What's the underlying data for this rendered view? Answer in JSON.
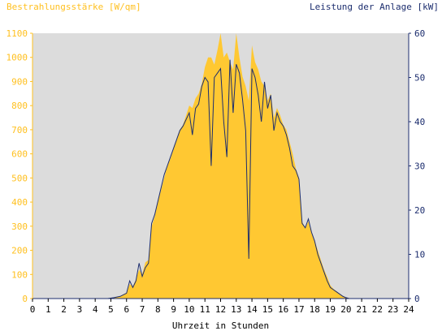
{
  "chart_data": {
    "type": "area",
    "y_left_label": "Bestrahlungsstärke [W/qm]",
    "y_right_label": "Leistung der Anlage [kW]",
    "xlabel": "Uhrzeit in Stunden",
    "xlim": [
      0,
      24
    ],
    "y_left_lim": [
      0,
      1100
    ],
    "y_right_lim": [
      0,
      60
    ],
    "x_ticks": [
      "0",
      "1",
      "2",
      "3",
      "4",
      "5",
      "6",
      "7",
      "8",
      "9",
      "10",
      "11",
      "12",
      "13",
      "14",
      "15",
      "16",
      "17",
      "18",
      "19",
      "20",
      "21",
      "22",
      "23",
      "24"
    ],
    "y_left_ticks": [
      "0",
      "100",
      "200",
      "300",
      "400",
      "500",
      "600",
      "700",
      "800",
      "900",
      "1000",
      "1100"
    ],
    "y_right_ticks": [
      "0",
      "10",
      "20",
      "30",
      "40",
      "50",
      "60"
    ],
    "grid": false,
    "colors": {
      "plot_background": "#dcdcdc",
      "irradiance_fill": "#ffc832",
      "power_line": "#1c2d6e",
      "left_axis": "#ffc020",
      "right_axis": "#1c2d6e"
    },
    "series": [
      {
        "axis": "left",
        "x": [
          0,
          4.8,
          5.2,
          5.6,
          6.0,
          6.2,
          6.4,
          6.6,
          6.8,
          7.0,
          7.2,
          7.4,
          7.6,
          7.8,
          8.0,
          8.2,
          8.4,
          8.6,
          8.8,
          9.0,
          9.2,
          9.4,
          9.6,
          9.8,
          10.0,
          10.2,
          10.4,
          10.6,
          10.8,
          11.0,
          11.2,
          11.4,
          11.6,
          11.8,
          12.0,
          12.2,
          12.4,
          12.6,
          12.8,
          13.0,
          13.2,
          13.4,
          13.6,
          13.8,
          14.0,
          14.2,
          14.4,
          14.6,
          14.8,
          15.0,
          15.2,
          15.4,
          15.6,
          15.8,
          16.0,
          16.2,
          16.4,
          16.6,
          16.8,
          17.0,
          17.2,
          17.4,
          17.6,
          17.8,
          18.0,
          18.2,
          18.4,
          18.6,
          18.8,
          19.0,
          19.2,
          19.4,
          19.6,
          19.8,
          20.0,
          20.2,
          20.5,
          21.0,
          24
        ],
        "values": [
          0,
          0,
          5,
          10,
          25,
          60,
          50,
          80,
          120,
          100,
          150,
          160,
          300,
          340,
          400,
          450,
          500,
          550,
          580,
          620,
          660,
          700,
          720,
          760,
          800,
          790,
          830,
          850,
          890,
          960,
          1000,
          1000,
          970,
          1030,
          1100,
          1000,
          1020,
          980,
          950,
          1100,
          1000,
          920,
          880,
          820,
          1050,
          980,
          950,
          900,
          880,
          820,
          850,
          750,
          790,
          760,
          720,
          700,
          650,
          600,
          540,
          500,
          320,
          290,
          320,
          270,
          240,
          200,
          160,
          120,
          90,
          55,
          40,
          30,
          20,
          10,
          5,
          2,
          0,
          0,
          0
        ]
      },
      {
        "axis": "right",
        "x": [
          0,
          4.8,
          5.2,
          5.6,
          6.0,
          6.2,
          6.4,
          6.6,
          6.8,
          7.0,
          7.2,
          7.4,
          7.6,
          7.8,
          8.0,
          8.2,
          8.4,
          8.6,
          8.8,
          9.0,
          9.2,
          9.4,
          9.6,
          9.8,
          10.0,
          10.2,
          10.4,
          10.6,
          10.8,
          11.0,
          11.2,
          11.4,
          11.6,
          11.8,
          12.0,
          12.2,
          12.4,
          12.6,
          12.8,
          13.0,
          13.2,
          13.4,
          13.6,
          13.8,
          14.0,
          14.2,
          14.4,
          14.6,
          14.8,
          15.0,
          15.2,
          15.4,
          15.6,
          15.8,
          16.0,
          16.2,
          16.4,
          16.6,
          16.8,
          17.0,
          17.2,
          17.4,
          17.6,
          17.8,
          18.0,
          18.2,
          18.4,
          18.6,
          18.8,
          19.0,
          19.2,
          19.4,
          19.6,
          19.8,
          20.0,
          20.2,
          20.5,
          21.0,
          24
        ],
        "values": [
          0,
          0,
          0.2,
          0.5,
          1.2,
          4,
          2.5,
          4,
          8,
          5,
          7,
          8,
          17,
          19,
          22,
          25,
          28,
          30,
          32,
          34,
          36,
          38,
          39,
          40.5,
          42,
          37,
          43,
          44,
          48,
          50,
          49,
          30,
          50,
          51,
          52,
          40,
          32,
          54,
          42,
          53,
          51,
          45,
          38,
          9,
          52,
          50,
          46,
          40,
          49,
          43,
          46,
          38,
          42,
          40,
          39,
          37,
          34,
          30,
          29,
          27,
          17,
          16,
          18,
          15,
          13,
          10,
          8,
          6,
          4,
          2.5,
          2,
          1.5,
          1,
          0.5,
          0.2,
          0,
          0,
          0,
          0
        ]
      }
    ]
  }
}
